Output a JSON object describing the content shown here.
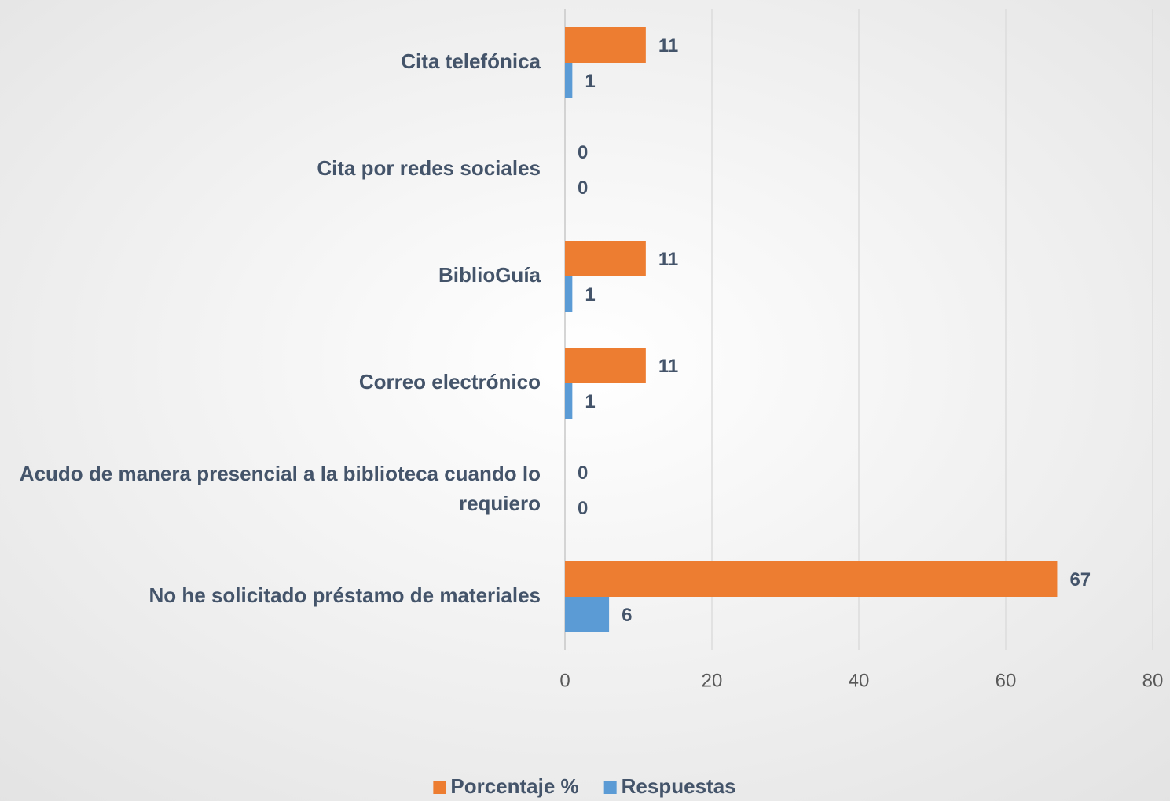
{
  "chart_data": {
    "type": "bar",
    "orientation": "horizontal",
    "categories": [
      "Cita telefónica",
      "Cita por redes sociales",
      "BiblioGuía",
      "Correo electrónico",
      "Acudo de manera presencial a la biblioteca cuando lo requiero",
      "No he solicitado préstamo de materiales"
    ],
    "series": [
      {
        "name": "Porcentaje %",
        "color": "#ed7d31",
        "values": [
          11,
          0,
          11,
          11,
          0,
          67
        ]
      },
      {
        "name": "Respuestas",
        "color": "#5b9bd5",
        "values": [
          1,
          0,
          1,
          1,
          0,
          6
        ]
      }
    ],
    "xlim": [
      0,
      80
    ],
    "xticks": [
      0,
      20,
      40,
      60,
      80
    ],
    "grid": true,
    "legend": "bottom"
  }
}
